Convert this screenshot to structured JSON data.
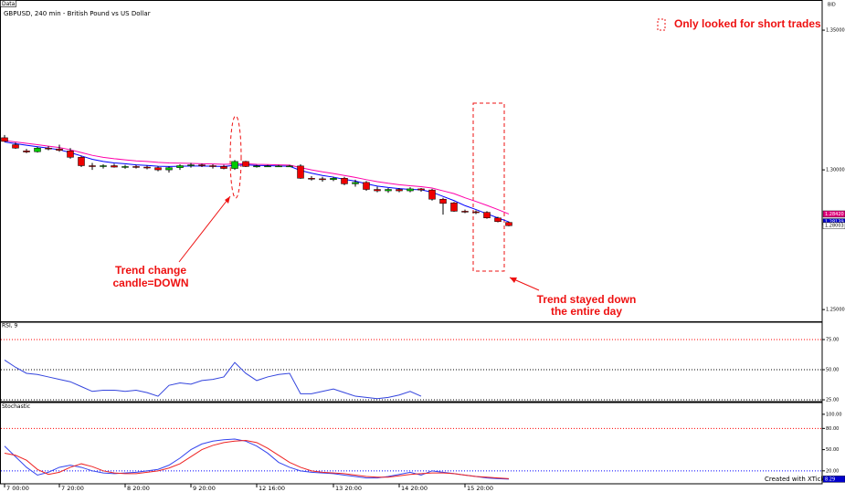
{
  "chart_data": [
    {
      "type": "candlestick",
      "panel_label": "Data",
      "title": "GBPUSD, 240 min - British Pound vs US Dollar",
      "y_label": "BID",
      "categories": [
        "7 00:00",
        null,
        null,
        null,
        null,
        "7 20:00",
        null,
        null,
        null,
        null,
        null,
        "8 20:00",
        null,
        null,
        null,
        null,
        null,
        "9 20:00",
        null,
        null,
        null,
        null,
        null,
        "12 16:00",
        null,
        null,
        null,
        null,
        null,
        null,
        "13 20:00",
        null,
        null,
        null,
        null,
        null,
        "14 20:00",
        null,
        null,
        null,
        null,
        null,
        "15 20:00",
        null,
        null,
        null,
        null
      ],
      "open": [
        1.3115,
        1.309,
        1.3068,
        1.3065,
        1.3078,
        1.3075,
        1.3068,
        1.3045,
        1.3015,
        1.3012,
        1.3015,
        1.301,
        1.3012,
        1.301,
        1.3008,
        1.3,
        1.3008,
        1.3015,
        1.3018,
        1.3015,
        1.3012,
        1.3005,
        1.303,
        1.3012,
        1.3014,
        1.3014,
        1.3014,
        1.3014,
        1.297,
        1.2968,
        1.2965,
        1.297,
        1.295,
        1.2955,
        1.293,
        1.2925,
        1.293,
        1.2925,
        1.2932,
        1.2928,
        1.2895,
        1.2882,
        1.2852,
        1.285,
        1.2848,
        1.2828,
        1.2812
      ],
      "high": [
        1.3125,
        1.3098,
        1.3075,
        1.3082,
        1.3085,
        1.309,
        1.3078,
        1.305,
        1.3025,
        1.302,
        1.3022,
        1.3018,
        1.3018,
        1.3015,
        1.3012,
        1.3012,
        1.302,
        1.3025,
        1.3022,
        1.302,
        1.3018,
        1.3035,
        1.3032,
        1.3018,
        1.3018,
        1.3018,
        1.3018,
        1.302,
        1.2978,
        1.2975,
        1.2975,
        1.2975,
        1.2965,
        1.296,
        1.294,
        1.2935,
        1.2935,
        1.2938,
        1.2935,
        1.2932,
        1.29,
        1.2885,
        1.2858,
        1.2855,
        1.2852,
        1.2832,
        1.2815
      ],
      "low": [
        1.31,
        1.3075,
        1.306,
        1.3062,
        1.307,
        1.3065,
        1.304,
        1.301,
        1.3,
        1.3005,
        1.3008,
        1.3004,
        1.3005,
        1.3002,
        1.2995,
        1.299,
        1.3,
        1.3008,
        1.301,
        1.3005,
        1.3002,
        1.3,
        1.301,
        1.3008,
        1.301,
        1.301,
        1.301,
        1.2968,
        1.2962,
        1.2958,
        1.296,
        1.2945,
        1.294,
        1.2925,
        1.292,
        1.2918,
        1.292,
        1.292,
        1.2922,
        1.289,
        1.284,
        1.285,
        1.2845,
        1.2842,
        1.2825,
        1.2812,
        1.2798
      ],
      "close": [
        1.3102,
        1.3078,
        1.3064,
        1.3078,
        1.3075,
        1.307,
        1.3045,
        1.3015,
        1.3012,
        1.3015,
        1.301,
        1.3012,
        1.301,
        1.3008,
        1.3,
        1.3008,
        1.3015,
        1.3018,
        1.3015,
        1.3012,
        1.3005,
        1.303,
        1.3012,
        1.3014,
        1.3014,
        1.3014,
        1.3014,
        1.297,
        1.2968,
        1.2965,
        1.297,
        1.295,
        1.2955,
        1.293,
        1.2925,
        1.293,
        1.2925,
        1.2932,
        1.2928,
        1.2895,
        1.288,
        1.2852,
        1.285,
        1.2848,
        1.2828,
        1.2815,
        1.28003
      ],
      "up_color": "#00cc00",
      "down_color": "#ee0000",
      "series": [
        {
          "color": "#ff00aa",
          "values": [
            1.3105,
            1.31,
            1.3095,
            1.309,
            1.3085,
            1.308,
            1.3072,
            1.3062,
            1.3052,
            1.3045,
            1.304,
            1.3036,
            1.3032,
            1.303,
            1.3027,
            1.3025,
            1.3024,
            1.3023,
            1.3022,
            1.3021,
            1.302,
            1.3021,
            1.3022,
            1.302,
            1.3019,
            1.3018,
            1.3017,
            1.3008,
            1.3,
            1.2993,
            1.2987,
            1.298,
            1.2973,
            1.2965,
            1.2958,
            1.2952,
            1.2947,
            1.2943,
            1.294,
            1.2935,
            1.2925,
            1.2915,
            1.29,
            1.2887,
            1.2873,
            1.2858,
            1.2842
          ]
        },
        {
          "color": "#0000ff",
          "values": [
            1.31,
            1.3094,
            1.3088,
            1.3083,
            1.3078,
            1.3072,
            1.3062,
            1.305,
            1.3038,
            1.303,
            1.3025,
            1.3022,
            1.3018,
            1.3016,
            1.3013,
            1.3012,
            1.3013,
            1.3014,
            1.3014,
            1.3013,
            1.3012,
            1.3016,
            1.3018,
            1.3016,
            1.3015,
            1.3014,
            1.3013,
            1.2998,
            1.2988,
            1.298,
            1.2974,
            1.2966,
            1.296,
            1.295,
            1.2942,
            1.2937,
            1.2933,
            1.293,
            1.2929,
            1.292,
            1.2905,
            1.289,
            1.2872,
            1.2858,
            1.2843,
            1.2828,
            1.28139
          ]
        }
      ],
      "ylim": [
        1.2458,
        1.3608
      ],
      "yticks": [
        {
          "value": 1.35,
          "label": "1.35000"
        },
        {
          "value": 1.3,
          "label": "1.30000"
        },
        {
          "value": 1.25,
          "label": "1.25000"
        }
      ],
      "tags": [
        {
          "value": 1.2842,
          "label": "1.28420",
          "color": "#e0007a"
        },
        {
          "value": 1.28139,
          "label": "1.28139",
          "color": "#0000cc"
        },
        {
          "value": 1.28003,
          "label": "1.28003",
          "color": "#ffffff"
        }
      ],
      "annotations": [
        "Only looked for short trades",
        "Trend change",
        "candle=DOWN",
        "Trend stayed down",
        "the entire day"
      ]
    },
    {
      "type": "line",
      "title": "RSI, 9",
      "color": "#3344dd",
      "values": [
        58,
        52,
        47,
        46,
        44,
        42,
        40,
        36,
        32,
        33,
        33,
        32,
        33,
        31,
        28,
        37,
        39,
        38,
        41,
        42,
        44,
        56,
        47,
        41,
        44,
        46,
        47,
        30,
        30,
        32,
        34,
        31,
        28,
        27,
        26,
        27,
        29,
        32,
        28,
        null,
        null,
        null,
        null,
        null,
        null,
        null,
        null
      ],
      "ylim": [
        23.5,
        89.4
      ],
      "yticks": [
        {
          "value": 75,
          "label": "75.00"
        },
        {
          "value": 50,
          "label": "50.00"
        },
        {
          "value": 25,
          "label": "25.00"
        }
      ],
      "level_colors": [
        "#ff0000",
        "#000000",
        "#000000"
      ]
    },
    {
      "type": "line",
      "title": "Stochastic",
      "footer": "Created with XTick",
      "series": [
        {
          "color": "#3344ee",
          "values": [
            55,
            40,
            25,
            14,
            18,
            25,
            28,
            25,
            20,
            17,
            16,
            17,
            18,
            20,
            22,
            28,
            38,
            50,
            58,
            62,
            64,
            65,
            62,
            55,
            45,
            32,
            25,
            20,
            18,
            17,
            16,
            14,
            12,
            10,
            10,
            12,
            15,
            18,
            14,
            20,
            18,
            16,
            14,
            12,
            10,
            9,
            8.29
          ]
        },
        {
          "color": "#ee2222",
          "values": [
            45,
            42,
            35,
            22,
            15,
            18,
            25,
            30,
            26,
            20,
            17,
            16,
            16,
            18,
            20,
            24,
            30,
            40,
            50,
            56,
            60,
            62,
            63,
            60,
            52,
            42,
            32,
            25,
            20,
            18,
            17,
            16,
            14,
            12,
            11,
            11,
            13,
            15,
            16,
            17,
            17,
            16,
            14,
            12,
            11,
            10,
            9
          ]
        }
      ],
      "ylim": [
        1.7,
        116.6
      ],
      "yticks": [
        {
          "value": 100,
          "label": "100.00"
        },
        {
          "value": 80,
          "label": "80.00"
        },
        {
          "value": 50,
          "label": "50.00"
        },
        {
          "value": 20,
          "label": "20.00"
        }
      ],
      "level_colors": [
        null,
        "#ff0000",
        null,
        "#0000ff"
      ],
      "tags": [
        {
          "value": 8.29,
          "label": "8.29",
          "color": "#0000cc"
        }
      ]
    }
  ]
}
